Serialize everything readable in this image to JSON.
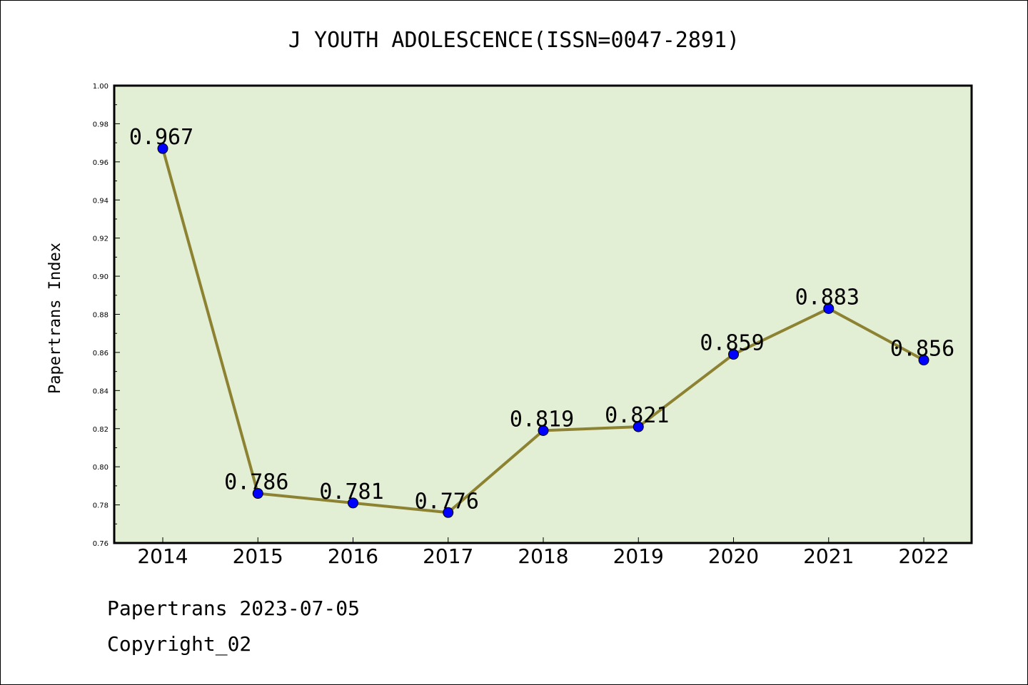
{
  "chart_data": {
    "type": "line",
    "title": "J YOUTH ADOLESCENCE(ISSN=0047-2891)",
    "xlabel": "",
    "ylabel": "Papertrans Index",
    "categories": [
      "2014",
      "2015",
      "2016",
      "2017",
      "2018",
      "2019",
      "2020",
      "2021",
      "2022"
    ],
    "values": [
      0.967,
      0.786,
      0.781,
      0.776,
      0.819,
      0.821,
      0.859,
      0.883,
      0.856
    ],
    "data_labels": [
      "0.967",
      "0.786",
      "0.781",
      "0.776",
      "0.819",
      "0.821",
      "0.859",
      "0.883",
      "0.856"
    ],
    "ylim": [
      0.76,
      1.0
    ],
    "yticks": [
      "0.76",
      "0.78",
      "0.80",
      "0.82",
      "0.84",
      "0.86",
      "0.88",
      "0.90",
      "0.92",
      "0.94",
      "0.96",
      "0.98",
      "1.00"
    ],
    "grid": false,
    "colors": {
      "plot_background": "#e2efd5",
      "line": "#8c8232",
      "marker": "#0000ff"
    }
  },
  "footer": {
    "source": "Papertrans 2023-07-05",
    "copyright": "Copyright_02"
  }
}
